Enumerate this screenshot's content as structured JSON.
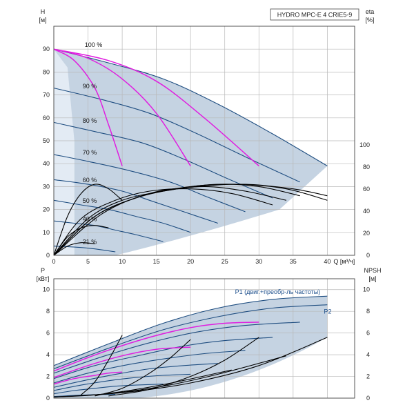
{
  "title_box": "HYDRO MPC-E 4 CRIE5-9",
  "colors": {
    "envelope": "#c5d3e2",
    "envelope_light": "#e3ebf4",
    "navy": "#1e4d80",
    "magenta": "#e01ee0",
    "black": "#000000",
    "grid": "#b8b8b8"
  },
  "chart_data": [
    {
      "id": "head",
      "type": "line",
      "x_unit_label": "Q [м³/ч]",
      "left_axis": {
        "label": "H",
        "unit": "[м]",
        "range": [
          0,
          100
        ],
        "ticks": [
          0,
          10,
          20,
          30,
          40,
          50,
          60,
          70,
          80,
          90
        ]
      },
      "right_axis": {
        "label": "eta",
        "unit": "[%]",
        "range": [
          0,
          100
        ],
        "ticks": [
          0,
          20,
          40,
          60,
          80,
          100
        ]
      },
      "x_range": [
        0,
        44
      ],
      "x_ticks": [
        0,
        5,
        10,
        15,
        20,
        25,
        30,
        35,
        40
      ],
      "grid": true,
      "speed_labels": [
        {
          "text": "100 %",
          "x": 2.5,
          "y": 90
        },
        {
          "text": "90 %",
          "x": 2.2,
          "y": 72
        },
        {
          "text": "80 %",
          "x": 2.2,
          "y": 57
        },
        {
          "text": "70 %",
          "x": 2.2,
          "y": 43
        },
        {
          "text": "60 %",
          "x": 2.2,
          "y": 31
        },
        {
          "text": "50 %",
          "x": 2.2,
          "y": 22
        },
        {
          "text": "40 %",
          "x": 2.2,
          "y": 14
        },
        {
          "text": "21 %",
          "x": 2.2,
          "y": 4
        }
      ],
      "series": [
        {
          "style": "navy",
          "x": [
            0,
            8,
            16,
            24,
            32,
            40
          ],
          "y": [
            90,
            84,
            77,
            66,
            53,
            39
          ]
        },
        {
          "style": "navy",
          "x": [
            0,
            7,
            14,
            21,
            28,
            36
          ],
          "y": [
            73,
            68,
            62,
            53,
            43,
            32
          ]
        },
        {
          "style": "navy",
          "x": [
            0,
            6,
            13,
            19,
            25,
            32
          ],
          "y": [
            58,
            54,
            49,
            42,
            34,
            25
          ]
        },
        {
          "style": "navy",
          "x": [
            0,
            5,
            11,
            17,
            22,
            28
          ],
          "y": [
            44,
            41,
            37,
            32,
            26,
            19
          ]
        },
        {
          "style": "navy",
          "x": [
            0,
            5,
            10,
            14,
            19,
            24
          ],
          "y": [
            33,
            31,
            28,
            24,
            19,
            14
          ]
        },
        {
          "style": "navy",
          "x": [
            0,
            4,
            8,
            12,
            16,
            20
          ],
          "y": [
            24,
            22,
            20,
            17,
            14,
            10
          ]
        },
        {
          "style": "navy",
          "x": [
            0,
            3,
            6,
            9,
            12,
            16
          ],
          "y": [
            15,
            14,
            13,
            11,
            9,
            6
          ]
        },
        {
          "style": "navy",
          "x": [
            0,
            2,
            4,
            6,
            9
          ],
          "y": [
            4,
            3.8,
            3.4,
            2.8,
            1.5
          ]
        },
        {
          "style": "magenta",
          "x": [
            0,
            3,
            6,
            8,
            10
          ],
          "y": [
            90,
            85,
            73,
            57,
            39
          ]
        },
        {
          "style": "magenta",
          "x": [
            0,
            5,
            10,
            15,
            20
          ],
          "y": [
            90,
            86,
            77,
            62,
            39
          ]
        },
        {
          "style": "magenta",
          "x": [
            0,
            8,
            15,
            22,
            30
          ],
          "y": [
            90,
            85,
            76,
            60,
            39
          ]
        },
        {
          "style": "black",
          "x": [
            0,
            2,
            4,
            6,
            8,
            10
          ],
          "y": [
            0,
            17,
            27,
            31,
            29,
            24
          ]
        },
        {
          "style": "black",
          "x": [
            0,
            2,
            4,
            6,
            8
          ],
          "y": [
            0,
            8,
            12,
            13,
            12
          ]
        },
        {
          "style": "black",
          "x": [
            0,
            2,
            4,
            6
          ],
          "y": [
            0,
            4,
            5.5,
            5
          ]
        },
        {
          "style": "black",
          "x": [
            0,
            4,
            9,
            14,
            20,
            26,
            32
          ],
          "y": [
            0,
            16,
            24,
            28,
            29,
            27,
            22
          ]
        },
        {
          "style": "black",
          "x": [
            0,
            5,
            10,
            16,
            22,
            28,
            34
          ],
          "y": [
            0,
            16,
            24,
            28,
            30,
            28,
            24
          ]
        },
        {
          "style": "black",
          "x": [
            0,
            6,
            12,
            18,
            24,
            30,
            36
          ],
          "y": [
            0,
            17,
            25,
            29,
            31,
            30,
            26
          ]
        },
        {
          "style": "black",
          "x": [
            0,
            6,
            13,
            20,
            27,
            34,
            40
          ],
          "y": [
            0,
            17,
            26,
            30,
            31,
            29,
            24
          ]
        },
        {
          "style": "black",
          "x": [
            0,
            7,
            14,
            21,
            28,
            35,
            40
          ],
          "y": [
            0,
            18,
            27,
            30,
            31,
            29,
            26
          ]
        }
      ]
    },
    {
      "id": "power",
      "type": "line",
      "left_axis": {
        "label": "P",
        "unit": "[кВт]",
        "range": [
          0,
          11
        ],
        "ticks": [
          0,
          2,
          4,
          6,
          8,
          10
        ]
      },
      "right_axis": {
        "label": "NPSH",
        "unit": "[м]",
        "range": [
          0,
          11
        ],
        "ticks": [
          0,
          2,
          4,
          6,
          8,
          10
        ]
      },
      "x_range": [
        0,
        44
      ],
      "grid": true,
      "series_labels": [
        {
          "text": "P1 (двиг.+преобр-ль частоты)",
          "x": 26.5,
          "y": 9.6
        },
        {
          "text": "P2",
          "x": 39.5,
          "y": 7.8
        }
      ],
      "series": [
        {
          "style": "navy",
          "name": "P1 (двиг.+преобр-ль частоты)",
          "x": [
            0,
            8,
            16,
            24,
            32,
            40
          ],
          "y": [
            3.0,
            5.0,
            6.9,
            8.3,
            9.1,
            9.4
          ]
        },
        {
          "style": "navy",
          "name": "P2",
          "x": [
            0,
            8,
            16,
            24,
            32,
            40
          ],
          "y": [
            2.7,
            4.6,
            6.3,
            7.5,
            8.3,
            8.6
          ]
        },
        {
          "style": "navy",
          "x": [
            0,
            7,
            14,
            21,
            28,
            36
          ],
          "y": [
            2.3,
            3.8,
            5.1,
            6.1,
            6.7,
            7.0
          ]
        },
        {
          "style": "navy",
          "x": [
            0,
            6,
            13,
            19,
            25,
            32
          ],
          "y": [
            1.8,
            3.0,
            4.0,
            4.8,
            5.3,
            5.6
          ]
        },
        {
          "style": "navy",
          "x": [
            0,
            5,
            11,
            17,
            22,
            28
          ],
          "y": [
            1.4,
            2.3,
            3.1,
            3.7,
            4.1,
            4.4
          ]
        },
        {
          "style": "navy",
          "x": [
            0,
            5,
            10,
            14,
            19,
            24
          ],
          "y": [
            1.0,
            1.7,
            2.3,
            2.7,
            3.0,
            3.2
          ]
        },
        {
          "style": "navy",
          "x": [
            0,
            4,
            8,
            12,
            16,
            20
          ],
          "y": [
            0.7,
            1.2,
            1.6,
            1.9,
            2.1,
            2.2
          ]
        },
        {
          "style": "navy",
          "x": [
            0,
            3,
            6,
            9,
            12,
            16
          ],
          "y": [
            0.4,
            0.7,
            0.9,
            1.1,
            1.2,
            1.3
          ]
        },
        {
          "style": "navy",
          "x": [
            0,
            2,
            4,
            6,
            9
          ],
          "y": [
            0.15,
            0.22,
            0.28,
            0.32,
            0.35
          ]
        },
        {
          "style": "magenta",
          "x": [
            0,
            7,
            14,
            20,
            25,
            30
          ],
          "y": [
            2.5,
            4.2,
            5.6,
            6.5,
            6.9,
            7.0
          ]
        },
        {
          "style": "magenta",
          "x": [
            0,
            5,
            10,
            15,
            20
          ],
          "y": [
            1.9,
            3.0,
            3.9,
            4.5,
            4.7
          ]
        },
        {
          "style": "magenta",
          "x": [
            0,
            3,
            6,
            8,
            10
          ],
          "y": [
            1.3,
            1.8,
            2.1,
            2.3,
            2.4
          ]
        },
        {
          "style": "black",
          "x": [
            4,
            6,
            8,
            10
          ],
          "y": [
            0.3,
            1.5,
            3.5,
            5.8
          ]
        },
        {
          "style": "black",
          "x": [
            6,
            10,
            14,
            17,
            20
          ],
          "y": [
            0.2,
            0.9,
            2.3,
            3.7,
            5.4
          ]
        },
        {
          "style": "black",
          "x": [
            8,
            14,
            20,
            25,
            30
          ],
          "y": [
            0.2,
            0.8,
            2.0,
            3.5,
            5.6
          ]
        },
        {
          "style": "black",
          "x": [
            0,
            10,
            20,
            30,
            40
          ],
          "y": [
            0.1,
            0.5,
            1.4,
            3.0,
            5.6
          ]
        },
        {
          "style": "black",
          "x": [
            0,
            8,
            16,
            24,
            34
          ],
          "y": [
            0.1,
            0.4,
            1.1,
            2.2,
            3.9
          ]
        },
        {
          "style": "black",
          "x": [
            0,
            6,
            12,
            18,
            26
          ],
          "y": [
            0.1,
            0.3,
            0.8,
            1.5,
            2.6
          ]
        }
      ]
    }
  ]
}
